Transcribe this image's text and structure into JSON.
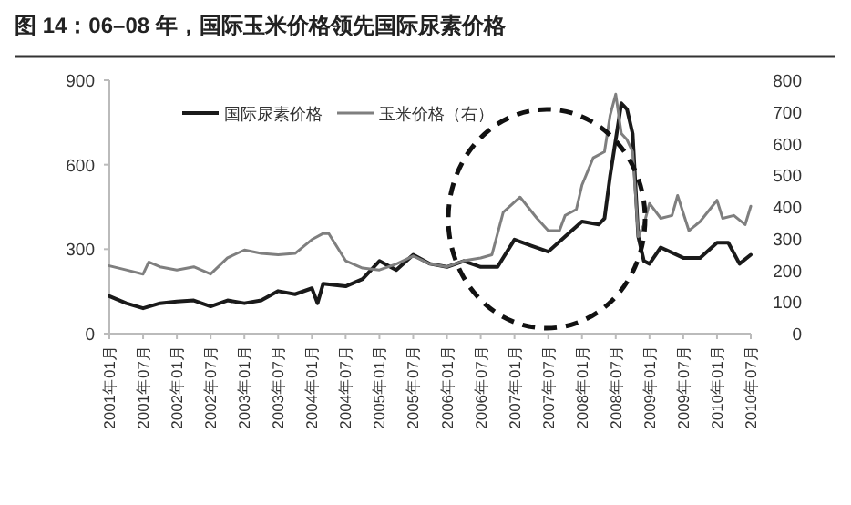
{
  "chart_data": {
    "type": "line",
    "title": "图 14：06–08 年，国际玉米价格领先国际尿素价格",
    "xlim": [
      "2001-01",
      "2010-07"
    ],
    "xticks": [
      {
        "value": "2001-01",
        "label": "2001年01月"
      },
      {
        "value": "2001-07",
        "label": "2001年07月"
      },
      {
        "value": "2002-01",
        "label": "2002年01月"
      },
      {
        "value": "2002-07",
        "label": "2002年07月"
      },
      {
        "value": "2003-01",
        "label": "2003年01月"
      },
      {
        "value": "2003-07",
        "label": "2003年07月"
      },
      {
        "value": "2004-01",
        "label": "2004年01月"
      },
      {
        "value": "2004-07",
        "label": "2004年07月"
      },
      {
        "value": "2005-01",
        "label": "2005年01月"
      },
      {
        "value": "2005-07",
        "label": "2005年07月"
      },
      {
        "value": "2006-01",
        "label": "2006年01月"
      },
      {
        "value": "2006-07",
        "label": "2006年07月"
      },
      {
        "value": "2007-01",
        "label": "2007年01月"
      },
      {
        "value": "2007-07",
        "label": "2007年07月"
      },
      {
        "value": "2008-01",
        "label": "2008年01月"
      },
      {
        "value": "2008-07",
        "label": "2008年07月"
      },
      {
        "value": "2009-01",
        "label": "2009年01月"
      },
      {
        "value": "2009-07",
        "label": "2009年07月"
      },
      {
        "value": "2010-01",
        "label": "2010年01月"
      },
      {
        "value": "2010-07",
        "label": "2010年07月"
      }
    ],
    "ylim": [
      0,
      900
    ],
    "yticks": [
      0,
      300,
      600,
      900
    ],
    "y2lim": [
      0,
      800
    ],
    "y2ticks": [
      0,
      100,
      200,
      300,
      400,
      500,
      600,
      700,
      800
    ],
    "legend": "top",
    "grid": false,
    "marker": "none",
    "line_style": "solid",
    "series": [
      {
        "name": "国际尿素价格",
        "color": "#1a1a1a",
        "x": [
          "2001-01",
          "2001-04",
          "2001-07",
          "2001-10",
          "2002-01",
          "2002-04",
          "2002-07",
          "2002-10",
          "2003-01",
          "2003-04",
          "2003-07",
          "2003-10",
          "2004-01",
          "2004-02",
          "2004-03",
          "2004-07",
          "2004-10",
          "2005-01",
          "2005-04",
          "2005-07",
          "2005-10",
          "2006-01",
          "2006-04",
          "2006-07",
          "2006-10",
          "2007-01",
          "2007-04",
          "2007-07",
          "2007-10",
          "2008-01",
          "2008-04",
          "2008-05",
          "2008-06",
          "2008-08",
          "2008-09",
          "2008-10",
          "2008-11",
          "2008-12",
          "2009-01",
          "2009-03",
          "2009-07",
          "2009-10",
          "2010-01",
          "2010-03",
          "2010-05",
          "2010-07"
        ],
        "values": [
          133,
          108,
          90,
          108,
          114,
          118,
          97,
          118,
          108,
          118,
          151,
          140,
          161,
          108,
          177,
          168,
          194,
          258,
          226,
          280,
          248,
          237,
          258,
          237,
          237,
          334,
          312,
          291,
          345,
          398,
          388,
          409,
          560,
          818,
          797,
          710,
          345,
          258,
          248,
          306,
          269,
          269,
          323,
          323,
          248,
          280
        ]
      },
      {
        "name": "玉米价格（右）",
        "color": "#7f7f7f",
        "axis": "y2",
        "x": [
          "2001-01",
          "2001-04",
          "2001-07",
          "2001-08",
          "2001-10",
          "2002-01",
          "2002-04",
          "2002-07",
          "2002-10",
          "2003-01",
          "2003-04",
          "2003-07",
          "2003-10",
          "2004-01",
          "2004-03",
          "2004-04",
          "2004-07",
          "2004-10",
          "2005-01",
          "2005-04",
          "2005-07",
          "2005-10",
          "2006-01",
          "2006-04",
          "2006-07",
          "2006-09",
          "2006-11",
          "2007-02",
          "2007-05",
          "2007-07",
          "2007-09",
          "2007-10",
          "2007-12",
          "2008-01",
          "2008-03",
          "2008-05",
          "2008-06",
          "2008-07",
          "2008-08",
          "2008-09",
          "2008-10",
          "2008-11",
          "2008-12",
          "2009-01",
          "2009-03",
          "2009-05",
          "2009-06",
          "2009-08",
          "2009-10",
          "2010-01",
          "2010-02",
          "2010-04",
          "2010-06",
          "2010-07"
        ],
        "values": [
          214,
          201,
          188,
          226,
          211,
          201,
          211,
          188,
          239,
          264,
          253,
          249,
          253,
          297,
          316,
          316,
          230,
          207,
          201,
          220,
          245,
          220,
          211,
          230,
          239,
          249,
          383,
          431,
          364,
          325,
          325,
          373,
          392,
          469,
          555,
          574,
          689,
          756,
          632,
          612,
          574,
          306,
          344,
          411,
          364,
          373,
          436,
          325,
          354,
          421,
          364,
          373,
          344,
          402
        ]
      }
    ]
  }
}
